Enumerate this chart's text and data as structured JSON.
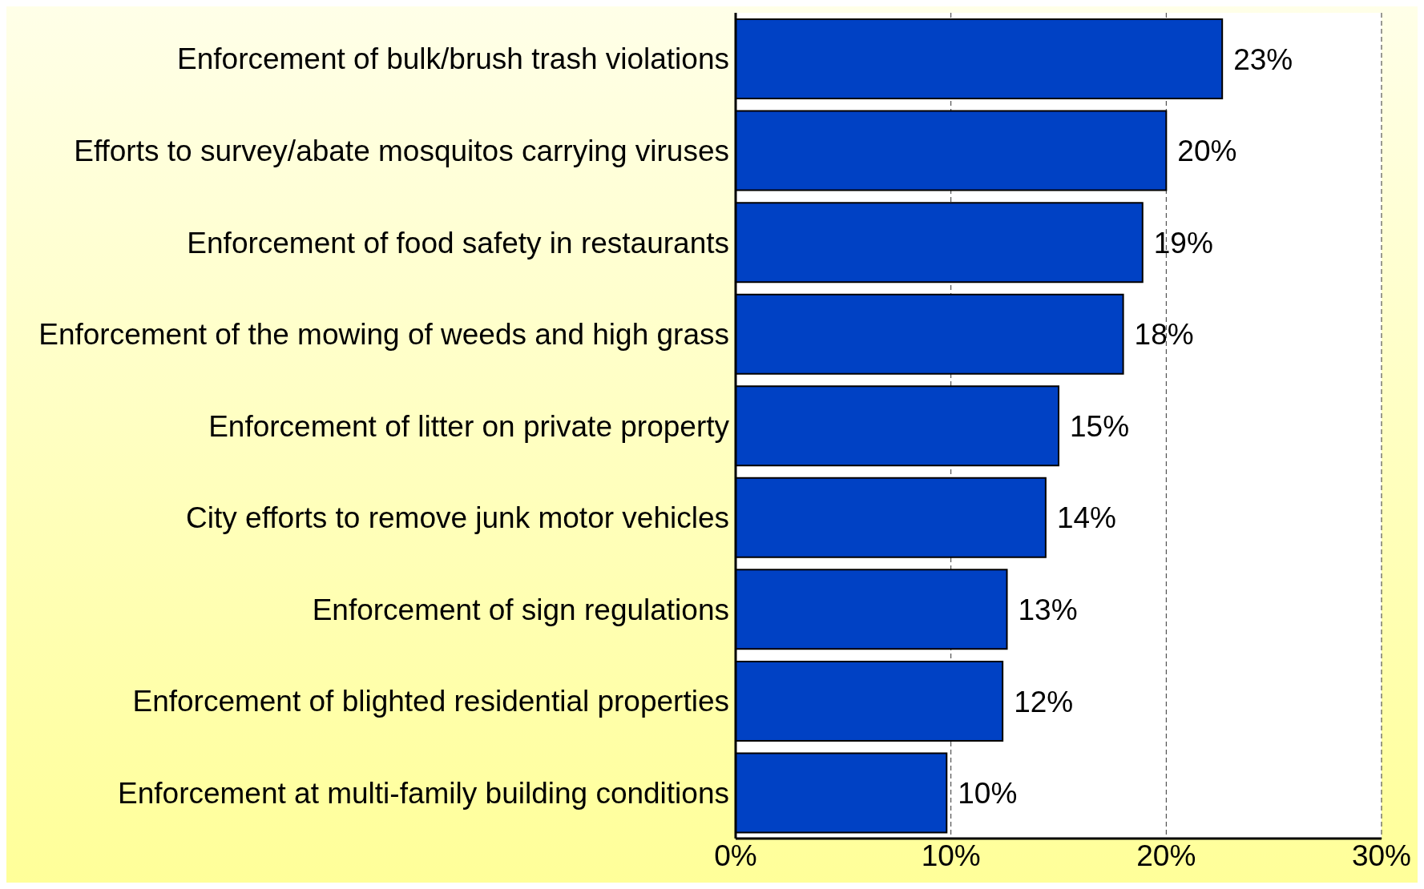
{
  "chart_data": {
    "type": "bar",
    "orientation": "horizontal",
    "categories": [
      "Enforcement of bulk/brush trash violations",
      "Efforts to survey/abate mosquitos carrying viruses",
      "Enforcement of food safety in restaurants",
      "Enforcement of the mowing of weeds and high grass",
      "Enforcement of litter on private property",
      "City efforts to remove junk motor vehicles",
      "Enforcement of sign regulations",
      "Enforcement of blighted residential properties",
      "Enforcement at multi-family building conditions"
    ],
    "values": [
      22.6,
      20.0,
      18.9,
      18.0,
      15.0,
      14.4,
      12.6,
      12.4,
      9.8
    ],
    "value_labels": [
      "23%",
      "20%",
      "19%",
      "18%",
      "15%",
      "14%",
      "13%",
      "12%",
      "10%"
    ],
    "color": "#0041c4",
    "xlim": [
      0,
      30
    ],
    "xticks": [
      {
        "value": 0,
        "label": "0%"
      },
      {
        "value": 10,
        "label": "10%"
      },
      {
        "value": 20,
        "label": "20%"
      },
      {
        "value": 30,
        "label": "30%"
      }
    ],
    "grid": "x"
  }
}
